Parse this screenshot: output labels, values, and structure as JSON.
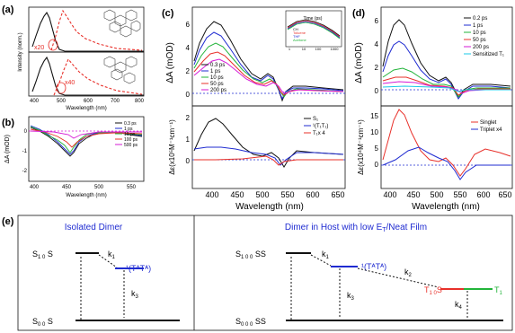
{
  "panels": {
    "a": {
      "label": "(a)",
      "ylabel": "Intensity (norm.)",
      "xlabel": "Wavelength (nm)",
      "xticks": [
        "400",
        "500",
        "600",
        "700",
        "800"
      ],
      "top_annotation": "x20",
      "bottom_annotation": "x40"
    },
    "b": {
      "label": "(b)",
      "ylabel": "ΔA (mOD)",
      "xlabel": "Wavelength (nm)",
      "yticks": [
        "0",
        "-1",
        "-2"
      ],
      "xticks": [
        "400",
        "450",
        "500",
        "550"
      ],
      "legend": [
        "0.3 ps",
        "1 ps",
        "10 ps",
        "100 ps",
        "500 ps"
      ]
    },
    "c": {
      "label": "(c)",
      "ylabel_top": "ΔA (mOD)",
      "ylabel_bottom": "Δε(x10⁵M⁻¹cm⁻¹)",
      "xlabel": "Wavelength (nm)",
      "yticks_top": [
        "6",
        "4",
        "2",
        "0"
      ],
      "yticks_bottom": [
        "2",
        "1",
        "0"
      ],
      "xticks": [
        "400",
        "450",
        "500",
        "550",
        "600",
        "650"
      ],
      "legend_top": [
        "0.3 ps",
        "1 ps",
        "10 ps",
        "50 ps",
        "200 ps"
      ],
      "legend_bottom": [
        "S₁",
        "¹(T₁T₁)",
        "T₁x 4"
      ],
      "inset": {
        "xlabel": "Time (ps)",
        "xticks": [
          "1",
          "10",
          "100",
          "1000"
        ],
        "legend": [
          "CH",
          "Toluene",
          "THF",
          "Acetone"
        ]
      }
    },
    "d": {
      "label": "(d)",
      "ylabel_top": "ΔA (mOD)",
      "ylabel_bottom": "Δε(x10⁴M⁻¹cm⁻¹)",
      "xlabel": "Wavelength (nm)",
      "yticks_top": [
        "6",
        "4",
        "2",
        "0"
      ],
      "yticks_bottom": [
        "15",
        "10",
        "5",
        "0"
      ],
      "xticks": [
        "400",
        "450",
        "500",
        "550",
        "600",
        "650"
      ],
      "legend_top": [
        "0.2 ps",
        "1 ps",
        "10 ps",
        "50 ps",
        "200 ps",
        "Sensitized T₁"
      ],
      "legend_bottom": [
        "Singlet",
        "Triplet x4"
      ]
    },
    "e": {
      "label": "(e)",
      "left_title": "Isolated Dimer",
      "right_title": "Dimer in Host with low E",
      "right_title_sub": "T",
      "right_title_tail": "/Neat Film",
      "k1": "k",
      "k2": "k",
      "k3": "k",
      "k4": "k",
      "sub1": "1",
      "sub2": "2",
      "sub3": "3",
      "sub4": "4",
      "tt_state": "¹(TᴬTᴬ)",
      "state_s1s0": "SᴬSᴬ",
      "state_s1s0_sup": "A A",
      "state_s1s0_sub": "1 0",
      "state_s0s0": "SᴬSᴬ",
      "state_s0s0_sup": "A A",
      "state_s0s0_sub": "0 0",
      "state_s1s0s0": "SSS",
      "state_s1s0s0_sup": "A A B",
      "state_s1s0s0_sub": "1 0 0",
      "state_tt_s0": "¹(TᴬTᴬ) S",
      "state_t1s0": "TS",
      "state_t1s0_sup": "A A",
      "state_t1s0_sub": "1 0",
      "state_t1b": "T",
      "state_t1b_sup": "B",
      "state_t1b_sub": "1",
      "state_s0s0s0": "SSS",
      "state_s0s0s0_sup": "A A B",
      "state_s0s0s0_sub": "0 0 0"
    }
  },
  "colors": {
    "black": "#111111",
    "red": "#e8302a",
    "blue": "#1f2bd1",
    "green": "#22b43a",
    "magenta": "#d61ad6",
    "cyan": "#19c8e8",
    "darkred": "#a31515"
  }
}
